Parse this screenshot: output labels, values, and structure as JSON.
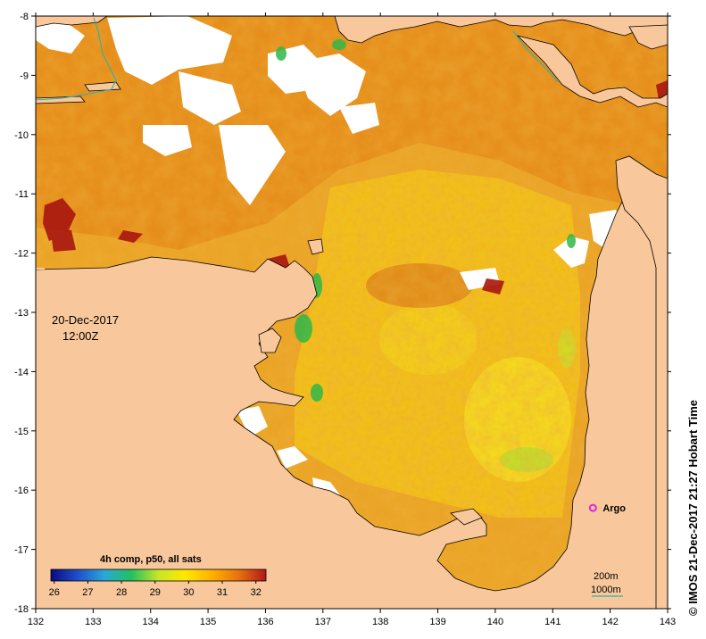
{
  "map": {
    "date_label": "20-Dec-2017",
    "time_label": "12:00Z",
    "credit": "© IMOS 21-Dec-2017 21:27 Hobart Time",
    "land_color": "#f8c79b",
    "no_data_color": "#ffffff"
  },
  "axes": {
    "lon_ticks": [
      "132",
      "133",
      "134",
      "135",
      "136",
      "137",
      "138",
      "139",
      "140",
      "141",
      "142",
      "143"
    ],
    "lat_ticks": [
      "-8",
      "-9",
      "-10",
      "-11",
      "-12",
      "-13",
      "-14",
      "-15",
      "-16",
      "-17",
      "-18"
    ],
    "lon_range": [
      132,
      143
    ],
    "lat_range": [
      -18,
      -8
    ]
  },
  "colorbar": {
    "title": "4h comp, p50, all sats",
    "tick_labels": [
      "26",
      "27",
      "28",
      "29",
      "30",
      "31",
      "32"
    ],
    "range": [
      25.9,
      32.3
    ],
    "colors": [
      "#0a0a82",
      "#1e50c8",
      "#2aa8d8",
      "#22c060",
      "#c8e628",
      "#ffe800",
      "#ffb000",
      "#e87010",
      "#b01818"
    ]
  },
  "markers": [
    {
      "label": "Argo",
      "lon": 141.7,
      "lat": -16.3,
      "color": "#e020e0"
    }
  ],
  "legend": {
    "contour_200": "200m",
    "contour_1000": "1000m"
  }
}
